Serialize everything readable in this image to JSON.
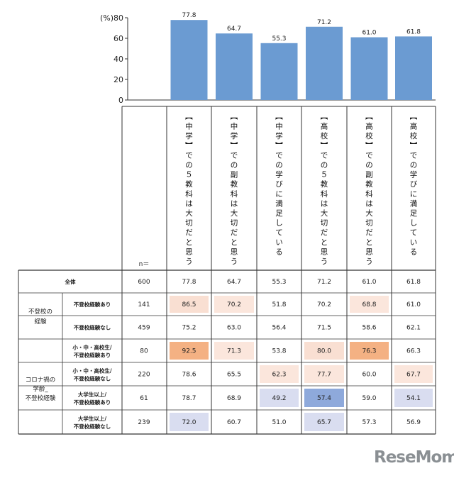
{
  "chart_data": {
    "type": "bar",
    "y_unit_label": "(%)",
    "ylim": [
      0,
      80
    ],
    "yticks": [
      0,
      20,
      40,
      60,
      80
    ],
    "categories": [
      "【中学】での５教科は大切だと思う",
      "【中学】での副教科は大切だと思う",
      "【中学】での学びに満足している",
      "【高校】での５教科は大切だと思う",
      "【高校】での副教科は大切だと思う",
      "【高校】での学びに満足している"
    ],
    "values": [
      77.8,
      64.7,
      55.3,
      71.2,
      61.0,
      61.8
    ],
    "value_labels": [
      "77.8",
      "64.7",
      "55.3",
      "71.2",
      "61.0",
      "61.8"
    ],
    "bar_color": "#6b9bd2"
  },
  "table": {
    "n_header": "n＝",
    "rows": [
      {
        "group": "",
        "label": "全体",
        "n": "600",
        "values": [
          "77.8",
          "64.7",
          "55.3",
          "71.2",
          "61.0",
          "61.8"
        ],
        "colors": [
          "",
          "",
          "",
          "",
          "",
          ""
        ]
      },
      {
        "group": "不登校の経験",
        "label": "不登校経験あり",
        "n": "141",
        "values": [
          "86.5",
          "70.2",
          "51.8",
          "70.2",
          "68.8",
          "61.0"
        ],
        "colors": [
          "#f9dfd2",
          "#fbe6dc",
          "",
          "",
          "#fbe6dc",
          ""
        ]
      },
      {
        "group": "不登校の経験",
        "label": "不登校経験なし",
        "n": "459",
        "values": [
          "75.2",
          "63.0",
          "56.4",
          "71.5",
          "58.6",
          "62.1"
        ],
        "colors": [
          "",
          "",
          "",
          "",
          "",
          ""
        ]
      },
      {
        "group": "コロナ禍の学齢_不登校経験",
        "label": "小・中・高校生/不登校経験あり",
        "n": "80",
        "values": [
          "92.5",
          "71.3",
          "53.8",
          "80.0",
          "76.3",
          "66.3"
        ],
        "colors": [
          "#f4b183",
          "#fbe6dc",
          "",
          "#f9dfd2",
          "#f4b183",
          ""
        ]
      },
      {
        "group": "コロナ禍の学齢_不登校経験",
        "label": "小・中・高校生/不登校経験なし",
        "n": "220",
        "values": [
          "78.6",
          "65.5",
          "62.3",
          "77.7",
          "60.0",
          "67.7"
        ],
        "colors": [
          "",
          "",
          "#fbe6dc",
          "#fbe6dc",
          "",
          "#fbe6dc"
        ]
      },
      {
        "group": "コロナ禍の学齢_不登校経験",
        "label": "大学生以上/不登校経験あり",
        "n": "61",
        "values": [
          "78.7",
          "68.9",
          "49.2",
          "57.4",
          "59.0",
          "54.1"
        ],
        "colors": [
          "",
          "",
          "#d9ddf0",
          "#8ea9db",
          "",
          "#d9ddf0"
        ]
      },
      {
        "group": "コロナ禍の学齢_不登校経験",
        "label": "大学生以上/不登校経験なし",
        "n": "239",
        "values": [
          "72.0",
          "60.7",
          "51.0",
          "65.7",
          "57.3",
          "56.9"
        ],
        "colors": [
          "#d9ddf0",
          "",
          "",
          "#d9ddf0",
          "",
          ""
        ]
      }
    ]
  },
  "logo": {
    "text": "ReseMom"
  }
}
